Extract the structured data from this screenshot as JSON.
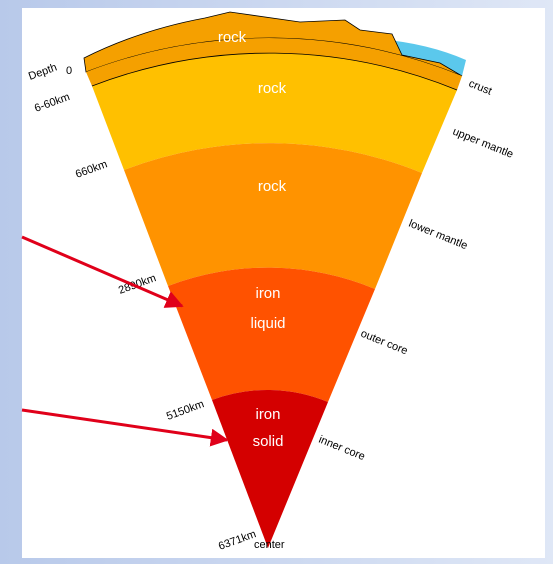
{
  "surface": {
    "label": "rock"
  },
  "layers": [
    {
      "label": "rock"
    },
    {
      "label": "rock"
    },
    {
      "label": "iron",
      "state": "liquid"
    },
    {
      "label": "iron",
      "state": "solid"
    }
  ],
  "depths": {
    "title": "Depth",
    "marks": [
      "0",
      "6-60km",
      "660km",
      "2890km",
      "5150km",
      "6371km"
    ],
    "center": "center"
  },
  "names": [
    "crust",
    "upper mantle",
    "lower mantle",
    "outer core",
    "inner core"
  ]
}
